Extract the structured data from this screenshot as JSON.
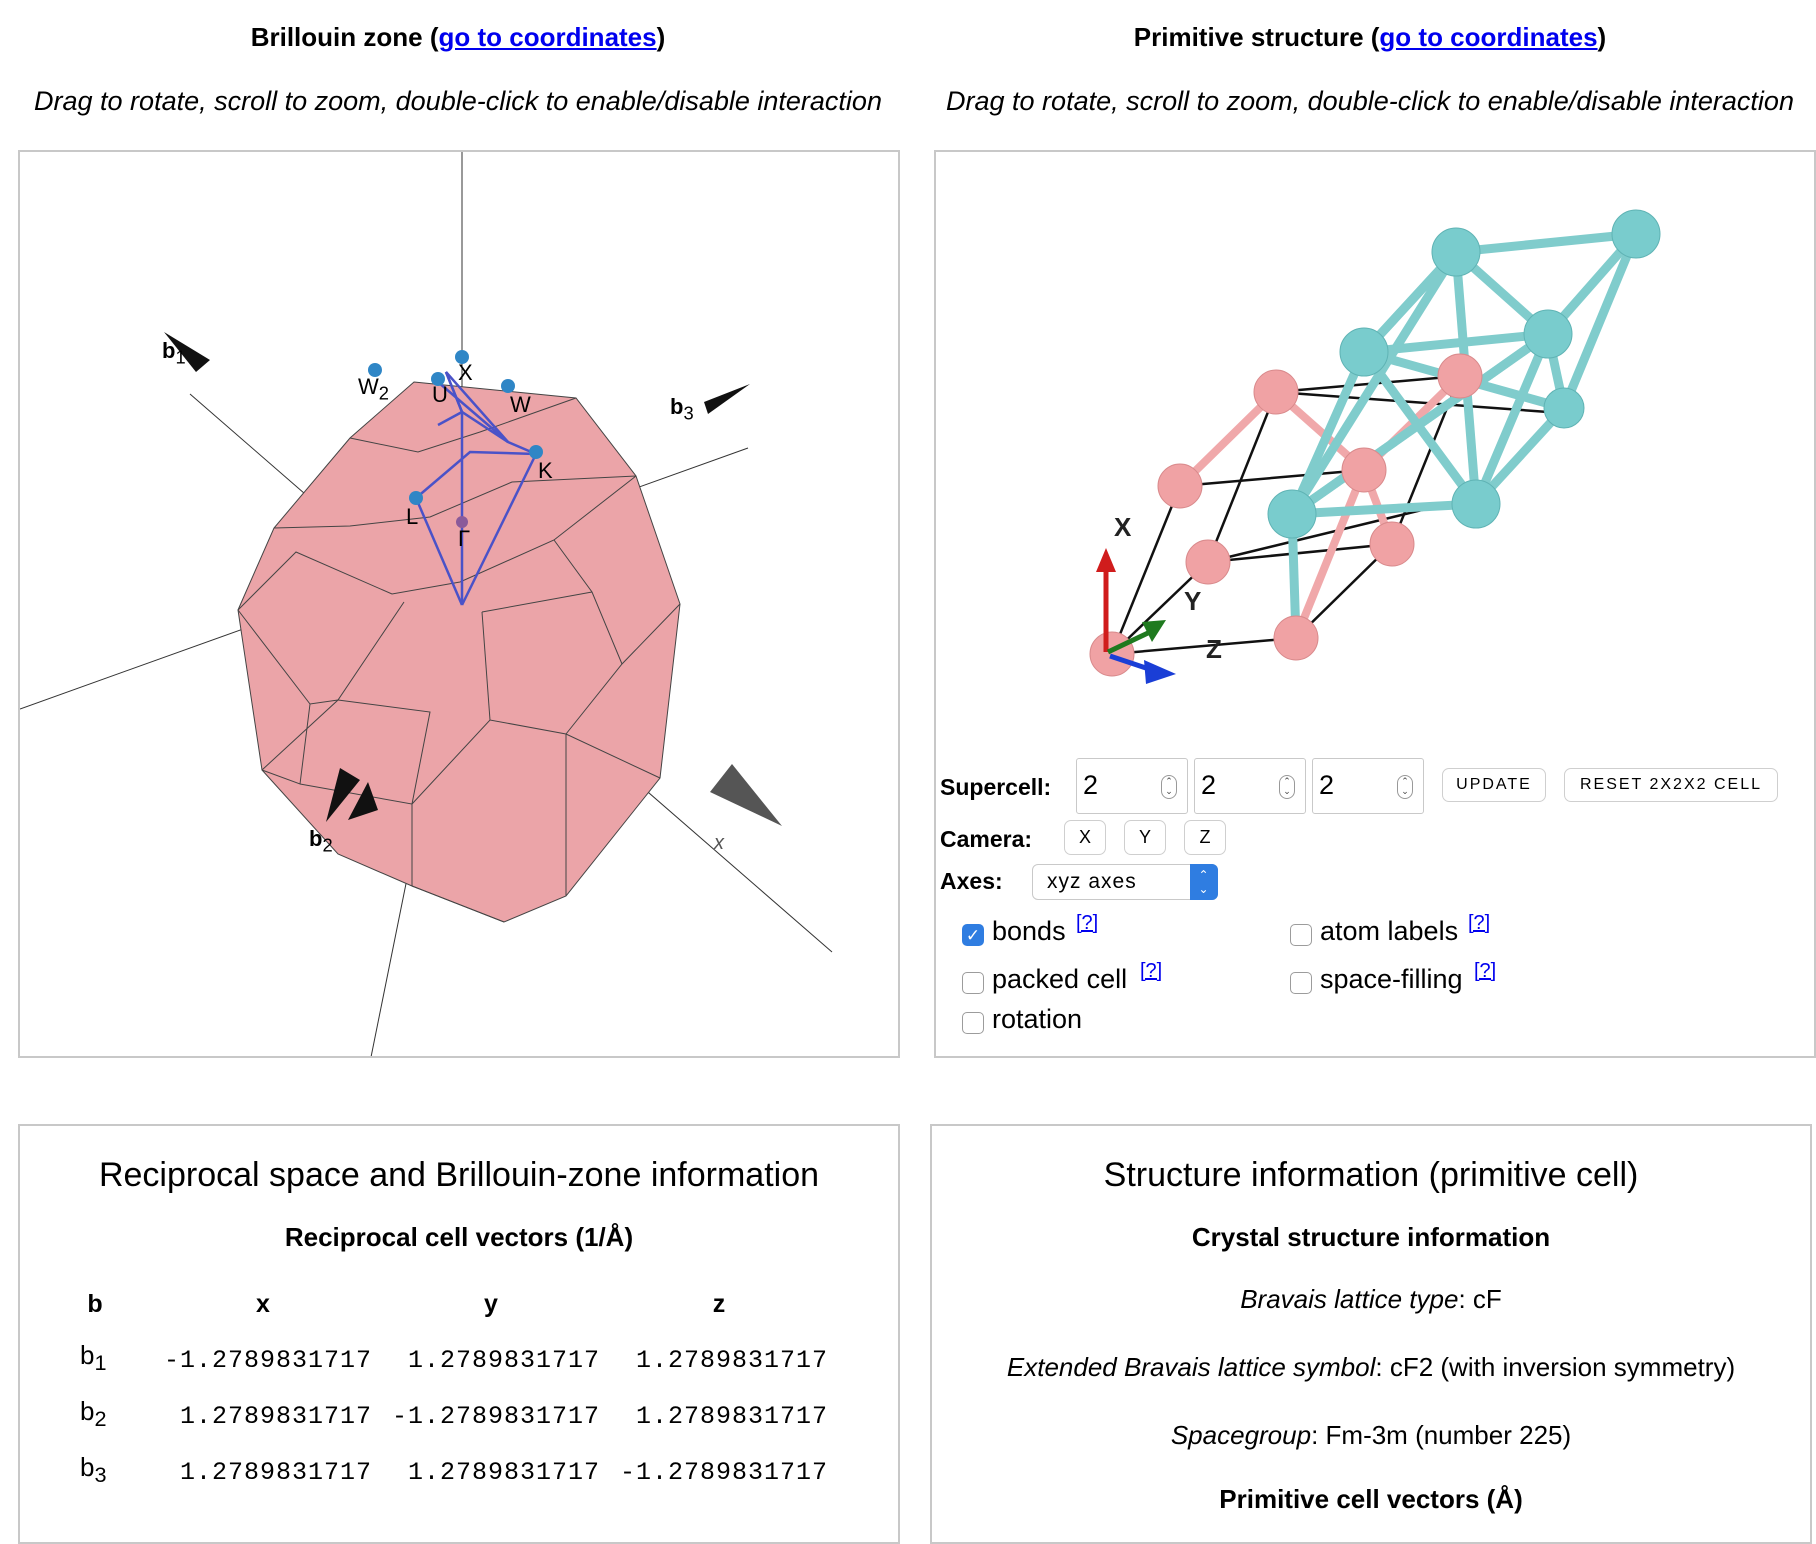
{
  "bz": {
    "title_prefix": "Brillouin zone (",
    "link": "go to coordinates",
    "title_suffix": ")",
    "hint": "Drag to rotate, scroll to zoom, double-click to enable/disable interaction",
    "vectors": {
      "b1": "b",
      "b1_sub": "1",
      "b2": "b",
      "b2_sub": "2",
      "b3": "b",
      "b3_sub": "3"
    },
    "points": {
      "X": "X",
      "U": "U",
      "W": "W",
      "W2": "W",
      "W2_sub": "2",
      "K": "K",
      "L": "L",
      "G": "Γ"
    },
    "axis_x": "x"
  },
  "struct": {
    "title_prefix": "Primitive structure (",
    "link": "go to coordinates",
    "title_suffix": ")",
    "hint": "Drag to rotate, scroll to zoom, double-click to enable/disable interaction",
    "axes": {
      "x": "X",
      "y": "Y",
      "z": "Z"
    },
    "supercell_label": "Supercell:",
    "supercell": [
      "2",
      "2",
      "2"
    ],
    "update": "UPDATE",
    "reset": "RESET 2X2X2 CELL",
    "camera_label": "Camera:",
    "camera": [
      "X",
      "Y",
      "Z"
    ],
    "axes_label": "Axes:",
    "axes_value": "xyz axes",
    "checkboxes": {
      "bonds": {
        "label": "bonds",
        "help": "[?]",
        "checked": true
      },
      "atom_labels": {
        "label": "atom labels",
        "help": "[?]",
        "checked": false
      },
      "packed_cell": {
        "label": "packed cell",
        "help": "[?]",
        "checked": false
      },
      "space_filling": {
        "label": "space-filling",
        "help": "[?]",
        "checked": false
      },
      "rotation": {
        "label": "rotation",
        "checked": false
      }
    }
  },
  "recip": {
    "heading": "Reciprocal space and Brillouin-zone information",
    "subheading": "Reciprocal cell vectors (1/Å)",
    "columns": [
      "b",
      "x",
      "y",
      "z"
    ],
    "rows": [
      {
        "name": "b",
        "sub": "1",
        "x": "-1.2789831717",
        "y": "1.2789831717",
        "z": "1.2789831717"
      },
      {
        "name": "b",
        "sub": "2",
        "x": "1.2789831717",
        "y": "-1.2789831717",
        "z": "1.2789831717"
      },
      {
        "name": "b",
        "sub": "3",
        "x": "1.2789831717",
        "y": "1.2789831717",
        "z": "-1.2789831717"
      }
    ]
  },
  "info": {
    "heading": "Structure information (primitive cell)",
    "subheading": "Crystal structure information",
    "bravais_label": "Bravais lattice type",
    "bravais_value": ": cF",
    "ext_label": "Extended Bravais lattice symbol",
    "ext_value": ": cF2 (with inversion symmetry)",
    "sg_label": "Spacegroup",
    "sg_value": ": Fm-3m (number 225)",
    "cell_vectors": "Primitive cell vectors (Å)"
  }
}
